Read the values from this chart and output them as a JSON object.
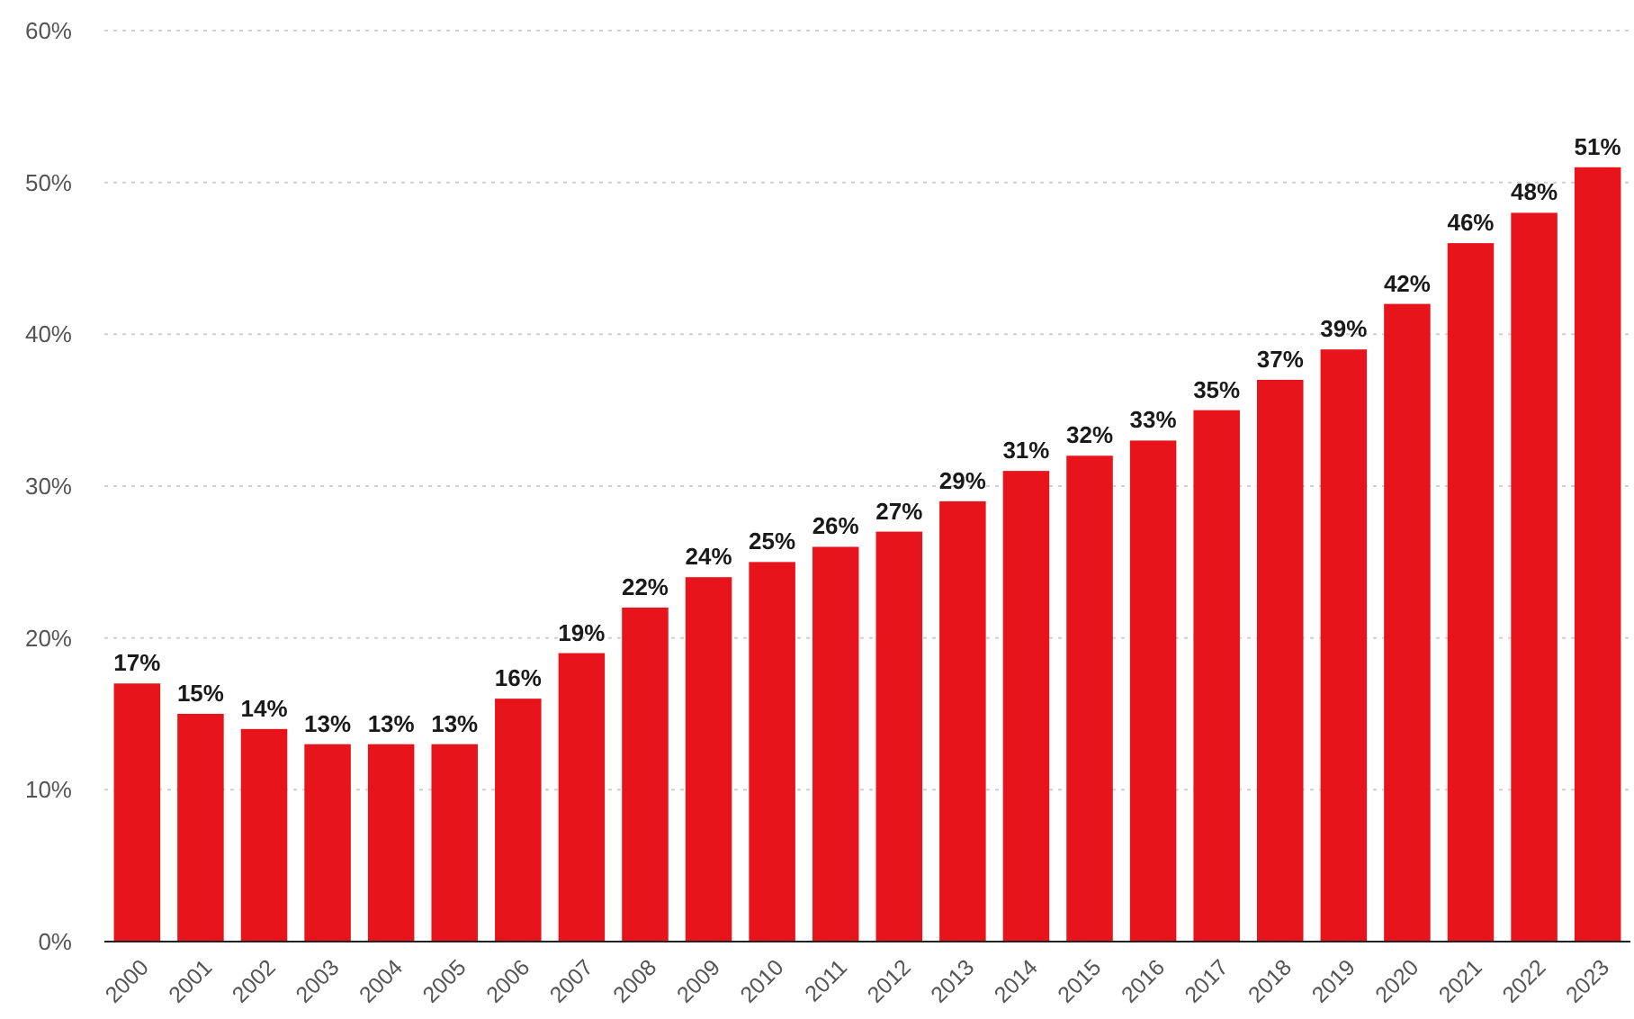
{
  "chart_data": {
    "type": "bar",
    "categories": [
      "2000",
      "2001",
      "2002",
      "2003",
      "2004",
      "2005",
      "2006",
      "2007",
      "2008",
      "2009",
      "2010",
      "2011",
      "2012",
      "2013",
      "2014",
      "2015",
      "2016",
      "2017",
      "2018",
      "2019",
      "2020",
      "2021",
      "2022",
      "2023"
    ],
    "values": [
      17,
      15,
      14,
      13,
      13,
      13,
      16,
      19,
      22,
      24,
      25,
      26,
      27,
      29,
      31,
      32,
      33,
      35,
      37,
      39,
      42,
      46,
      48,
      51
    ],
    "value_labels": [
      "17%",
      "15%",
      "14%",
      "13%",
      "13%",
      "13%",
      "16%",
      "19%",
      "22%",
      "24%",
      "25%",
      "26%",
      "27%",
      "29%",
      "31%",
      "32%",
      "33%",
      "35%",
      "37%",
      "39%",
      "42%",
      "46%",
      "48%",
      "51%"
    ],
    "color": "#e8141b",
    "ylim": [
      0,
      60
    ],
    "yticks": [
      {
        "value": 0,
        "label": "0%"
      },
      {
        "value": 10,
        "label": "10%"
      },
      {
        "value": 20,
        "label": "20%"
      },
      {
        "value": 30,
        "label": "30%"
      },
      {
        "value": 40,
        "label": "40%"
      },
      {
        "value": 50,
        "label": "50%"
      },
      {
        "value": 60,
        "label": "60%"
      }
    ],
    "grid": "y"
  }
}
